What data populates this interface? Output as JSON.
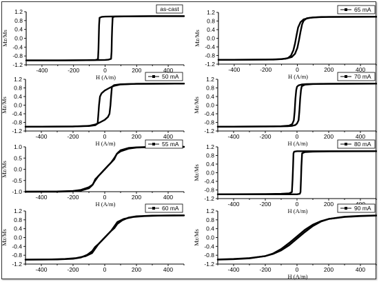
{
  "chart_data": [
    {
      "type": "line",
      "legend": "as-cast",
      "legend_style": "text-only",
      "xlabel": "H (A/m)",
      "ylabel": "Mz/Ms",
      "xlim": [
        -500,
        500
      ],
      "ylim": [
        -1.2,
        1.2
      ],
      "xticks": [
        -400,
        -200,
        0,
        200,
        400
      ],
      "yticks": [
        -1.2,
        -0.8,
        -0.4,
        0.0,
        0.4,
        0.8,
        1.2
      ],
      "ytick_labels": [
        "-1.2",
        "-0.8",
        "-0.4",
        "0.0",
        "0.4",
        "0.8",
        "1.2"
      ],
      "series": [
        {
          "x": [
            -500,
            -250,
            -120,
            -60,
            -45,
            -42,
            -40,
            -38,
            -35,
            -20,
            0,
            100,
            300,
            500
          ],
          "y": [
            -1.0,
            -1.0,
            -0.99,
            -0.98,
            -0.95,
            -0.5,
            0.0,
            0.6,
            0.93,
            0.97,
            0.98,
            0.99,
            1.0,
            1.0
          ]
        },
        {
          "x": [
            500,
            300,
            150,
            60,
            48,
            45,
            43,
            41,
            38,
            20,
            0,
            -100,
            -300,
            -500
          ],
          "y": [
            1.0,
            1.0,
            0.99,
            0.98,
            0.95,
            0.5,
            0.0,
            -0.6,
            -0.93,
            -0.97,
            -0.98,
            -0.99,
            -1.0,
            -1.0
          ]
        }
      ]
    },
    {
      "type": "line",
      "legend": "65 mA",
      "legend_style": "line-marker",
      "xlabel": "H (A/m)",
      "ylabel": "Mz/Ms",
      "xlim": [
        -500,
        500
      ],
      "ylim": [
        -1.2,
        1.2
      ],
      "xticks": [
        -400,
        -200,
        0,
        200,
        400
      ],
      "yticks": [
        -1.2,
        -0.8,
        -0.4,
        0.0,
        0.4,
        0.8,
        1.2
      ],
      "ytick_labels": [
        "-1.2",
        "-0.8",
        "-0.4",
        "0.0",
        "0.4",
        "0.8",
        "1.2"
      ],
      "series": [
        {
          "x": [
            -500,
            -200,
            -100,
            -60,
            -40,
            -25,
            -15,
            -5,
            5,
            20,
            40,
            80,
            150,
            500
          ],
          "y": [
            -1.0,
            -0.99,
            -0.97,
            -0.92,
            -0.8,
            -0.55,
            -0.25,
            0.15,
            0.5,
            0.75,
            0.88,
            0.95,
            0.99,
            1.0
          ]
        },
        {
          "x": [
            500,
            200,
            100,
            60,
            40,
            30,
            20,
            10,
            0,
            -15,
            -35,
            -75,
            -150,
            -500
          ],
          "y": [
            1.0,
            0.99,
            0.97,
            0.93,
            0.82,
            0.65,
            0.3,
            -0.1,
            -0.45,
            -0.72,
            -0.87,
            -0.95,
            -0.99,
            -1.0
          ]
        }
      ]
    },
    {
      "type": "line",
      "legend": "50 mA",
      "legend_style": "line-marker",
      "xlabel": "H (A/m)",
      "ylabel": "Mz/Ms",
      "xlim": [
        -500,
        500
      ],
      "ylim": [
        -1.2,
        1.2
      ],
      "xticks": [
        -400,
        -200,
        0,
        200,
        400
      ],
      "yticks": [
        -1.2,
        -0.8,
        -0.4,
        0.0,
        0.4,
        0.8,
        1.2
      ],
      "ytick_labels": [
        "-1.2",
        "-0.8",
        "-0.4",
        "0.0",
        "0.4",
        "0.8",
        "1.2"
      ],
      "series": [
        {
          "x": [
            -500,
            -200,
            -100,
            -60,
            -45,
            -40,
            -36,
            -30,
            -20,
            0,
            30,
            60,
            100,
            200,
            500
          ],
          "y": [
            -1.0,
            -0.99,
            -0.97,
            -0.93,
            -0.85,
            -0.4,
            0.0,
            0.4,
            0.55,
            0.68,
            0.8,
            0.9,
            0.96,
            0.99,
            1.0
          ]
        },
        {
          "x": [
            500,
            200,
            100,
            60,
            45,
            40,
            36,
            30,
            20,
            0,
            -30,
            -60,
            -100,
            -200,
            -500
          ],
          "y": [
            1.0,
            0.99,
            0.97,
            0.93,
            0.85,
            0.4,
            0.0,
            -0.4,
            -0.55,
            -0.68,
            -0.8,
            -0.9,
            -0.96,
            -0.99,
            -1.0
          ]
        }
      ]
    },
    {
      "type": "line",
      "legend": "70 mA",
      "legend_style": "line-marker",
      "xlabel": "H (A/m)",
      "ylabel": "Mz/Ms",
      "xlim": [
        -500,
        500
      ],
      "ylim": [
        -1.2,
        1.2
      ],
      "xticks": [
        -400,
        -200,
        0,
        200,
        400
      ],
      "yticks": [
        -1.2,
        -0.8,
        -0.4,
        0.0,
        0.4,
        0.8,
        1.2
      ],
      "ytick_labels": [
        "-1.2",
        "-0.8",
        "-0.4",
        "0.0",
        "0.4",
        "0.8",
        "1.2"
      ],
      "series": [
        {
          "x": [
            -500,
            -200,
            -100,
            -50,
            -30,
            -20,
            -15,
            -10,
            -5,
            0,
            10,
            30,
            60,
            150,
            500
          ],
          "y": [
            -1.0,
            -0.99,
            -0.98,
            -0.95,
            -0.88,
            -0.7,
            -0.3,
            0.3,
            0.7,
            0.85,
            0.92,
            0.96,
            0.98,
            0.99,
            1.0
          ]
        },
        {
          "x": [
            500,
            200,
            100,
            50,
            30,
            25,
            20,
            15,
            10,
            0,
            -10,
            -30,
            -60,
            -150,
            -500
          ],
          "y": [
            1.0,
            0.99,
            0.98,
            0.95,
            0.88,
            0.7,
            0.3,
            -0.3,
            -0.7,
            -0.85,
            -0.92,
            -0.96,
            -0.98,
            -0.99,
            -1.0
          ]
        }
      ]
    },
    {
      "type": "line",
      "legend": "55 mA",
      "legend_style": "line-marker",
      "xlabel": "H (A/m)",
      "ylabel": "Mz/Ms",
      "xlim": [
        -500,
        500
      ],
      "ylim": [
        -1.0,
        1.0
      ],
      "xticks": [
        -400,
        -200,
        0,
        200,
        400
      ],
      "yticks": [
        -1.0,
        -0.5,
        0.0,
        0.5,
        1.0
      ],
      "ytick_labels": [
        "-1.0",
        "-0.5",
        "0.0",
        "0.5",
        "1.0"
      ],
      "series": [
        {
          "x": [
            -500,
            -300,
            -200,
            -150,
            -100,
            -75,
            -60,
            -40,
            -20,
            0,
            20,
            40,
            60,
            80,
            100,
            150,
            200,
            300,
            500
          ],
          "y": [
            -1.0,
            -0.99,
            -0.97,
            -0.92,
            -0.8,
            -0.68,
            -0.45,
            -0.3,
            -0.15,
            0.0,
            0.15,
            0.3,
            0.5,
            0.72,
            0.85,
            0.95,
            0.98,
            1.0,
            1.0
          ]
        },
        {
          "x": [
            500,
            300,
            200,
            150,
            100,
            75,
            60,
            40,
            20,
            0,
            -20,
            -40,
            -60,
            -80,
            -100,
            -150,
            -200,
            -300,
            -500
          ],
          "y": [
            1.0,
            0.99,
            0.97,
            0.92,
            0.8,
            0.68,
            0.45,
            0.3,
            0.15,
            0.0,
            -0.15,
            -0.3,
            -0.5,
            -0.72,
            -0.85,
            -0.95,
            -0.98,
            -1.0,
            -1.0
          ]
        }
      ]
    },
    {
      "type": "line",
      "legend": "80 mA",
      "legend_style": "line-marker",
      "xlabel": "H (A/m)",
      "ylabel": "Mz/Ms",
      "xlim": [
        -500,
        500
      ],
      "ylim": [
        -1.2,
        1.2
      ],
      "xticks": [
        -400,
        -200,
        0,
        200,
        400
      ],
      "yticks": [
        -1.2,
        -0.8,
        -0.4,
        0.0,
        0.4,
        0.8,
        1.2
      ],
      "ytick_labels": [
        "-1.2",
        "-0.8",
        "-0.4",
        "0.0",
        "0.4",
        "0.8",
        "1.2"
      ],
      "series": [
        {
          "x": [
            -500,
            -200,
            -100,
            -50,
            -32,
            -28,
            -25,
            -22,
            -18,
            0,
            100,
            500
          ],
          "y": [
            -1.0,
            -0.99,
            -0.98,
            -0.96,
            -0.9,
            -0.3,
            0.3,
            0.9,
            0.98,
            1.0,
            1.0,
            1.0
          ]
        },
        {
          "x": [
            500,
            200,
            100,
            50,
            32,
            28,
            25,
            22,
            18,
            0,
            -100,
            -500
          ],
          "y": [
            1.0,
            0.99,
            0.98,
            0.96,
            0.9,
            0.3,
            -0.3,
            -0.9,
            -0.98,
            -1.0,
            -1.0,
            -1.0
          ]
        }
      ]
    },
    {
      "type": "line",
      "legend": "60 mA",
      "legend_style": "line-marker",
      "xlabel": "",
      "ylabel": "Mz/Ms",
      "xlim": [
        -500,
        500
      ],
      "ylim": [
        -1.2,
        1.2
      ],
      "xticks": [
        -400,
        -200,
        0,
        200,
        400
      ],
      "yticks": [
        -1.2,
        -0.8,
        -0.4,
        0.0,
        0.4,
        0.8,
        1.2
      ],
      "ytick_labels": [
        "-1.2",
        "-0.8",
        "-0.4",
        "0.0",
        "0.4",
        "0.8",
        "1.2"
      ],
      "series": [
        {
          "x": [
            -500,
            -300,
            -200,
            -150,
            -110,
            -80,
            -60,
            -40,
            -20,
            0,
            20,
            40,
            60,
            80,
            120,
            180,
            250,
            350,
            500
          ],
          "y": [
            -1.0,
            -0.99,
            -0.96,
            -0.9,
            -0.78,
            -0.62,
            -0.42,
            -0.3,
            -0.15,
            0.0,
            0.15,
            0.3,
            0.5,
            0.7,
            0.84,
            0.93,
            0.97,
            0.99,
            1.0
          ]
        },
        {
          "x": [
            500,
            300,
            200,
            150,
            110,
            80,
            60,
            40,
            20,
            0,
            -20,
            -40,
            -60,
            -80,
            -120,
            -180,
            -250,
            -350,
            -500
          ],
          "y": [
            1.0,
            0.99,
            0.96,
            0.9,
            0.78,
            0.62,
            0.42,
            0.3,
            0.15,
            0.0,
            -0.15,
            -0.3,
            -0.5,
            -0.7,
            -0.84,
            -0.93,
            -0.97,
            -0.99,
            -1.0
          ]
        }
      ]
    },
    {
      "type": "line",
      "legend": "90 mA",
      "legend_style": "line-marker",
      "xlabel": "H (A/m)",
      "ylabel": "Mz/Ms",
      "xlim": [
        -500,
        500
      ],
      "ylim": [
        -1.2,
        1.2
      ],
      "xticks": [
        -400,
        -200,
        0,
        200,
        400
      ],
      "yticks": [
        -1.2,
        -0.8,
        -0.4,
        0.0,
        0.4,
        0.8,
        1.2
      ],
      "ytick_labels": [
        "-1.2",
        "-0.8",
        "-0.4",
        "0.0",
        "0.4",
        "0.8",
        "1.2"
      ],
      "series": [
        {
          "x": [
            -500,
            -400,
            -300,
            -200,
            -150,
            -100,
            -50,
            0,
            50,
            100,
            150,
            200,
            300,
            400,
            500
          ],
          "y": [
            -1.0,
            -0.98,
            -0.94,
            -0.84,
            -0.72,
            -0.52,
            -0.25,
            0.05,
            0.35,
            0.58,
            0.74,
            0.84,
            0.93,
            0.97,
            0.99
          ]
        },
        {
          "x": [
            500,
            400,
            300,
            200,
            150,
            100,
            50,
            0,
            -50,
            -100,
            -150,
            -200,
            -300,
            -400,
            -500
          ],
          "y": [
            1.0,
            0.98,
            0.94,
            0.84,
            0.72,
            0.52,
            0.25,
            -0.05,
            -0.35,
            -0.58,
            -0.74,
            -0.84,
            -0.93,
            -0.97,
            -0.99
          ]
        }
      ]
    }
  ]
}
